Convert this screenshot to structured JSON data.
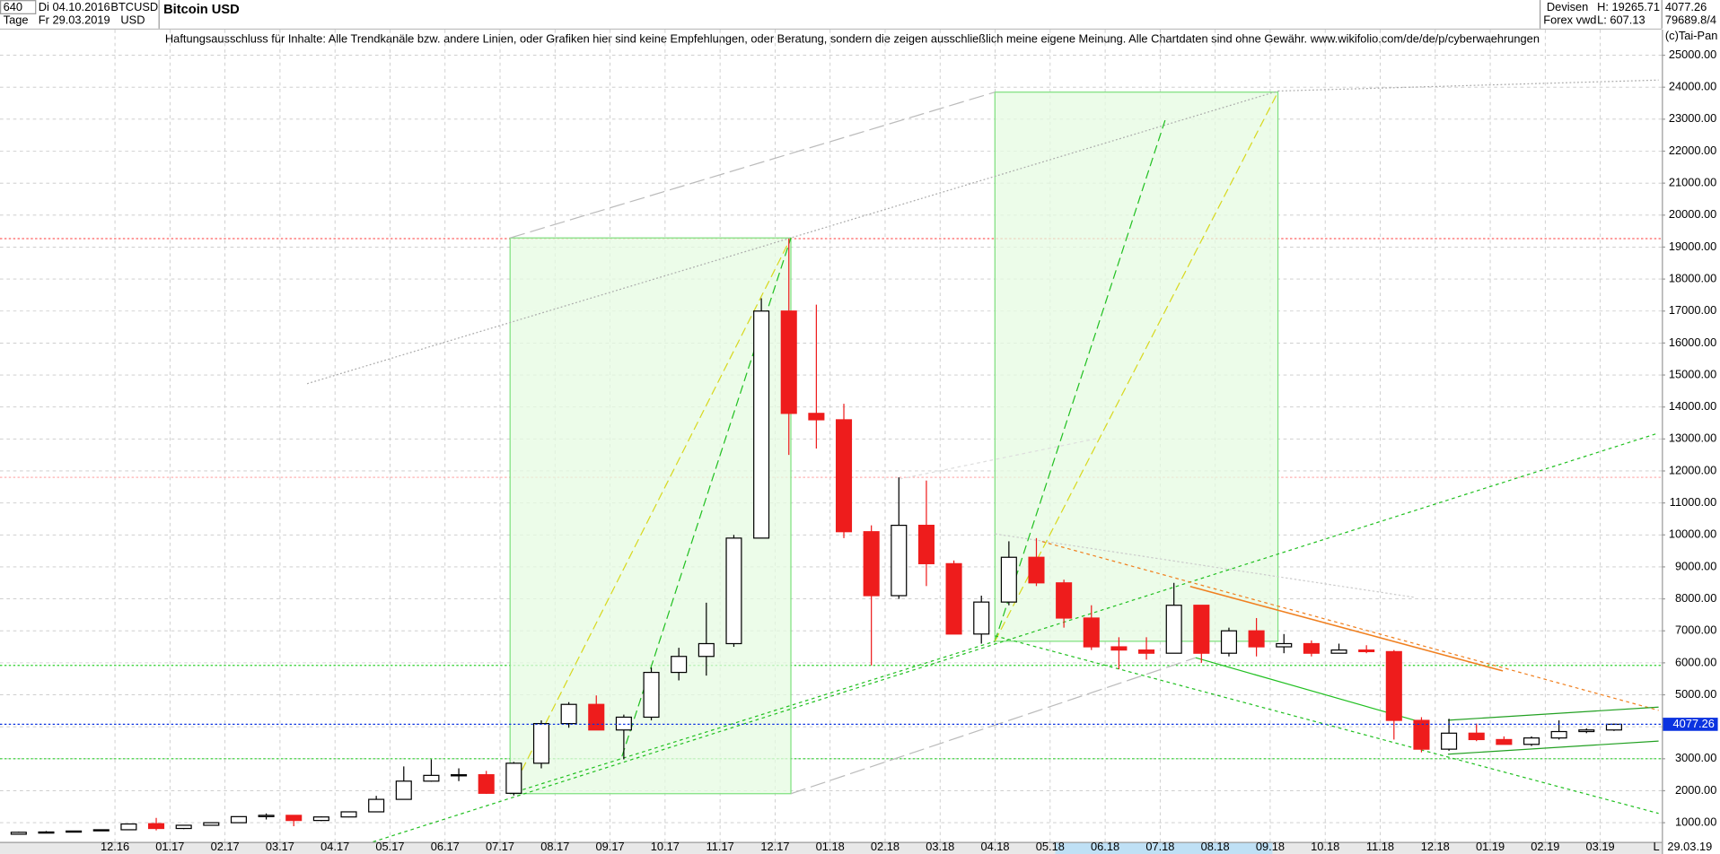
{
  "header": {
    "interval": "640",
    "period": "Tage",
    "start": "Di 04.10.2016",
    "end": "Fr 29.03.2019",
    "symbol": "BTCUSD",
    "currency": "USD",
    "name": "Bitcoin USD",
    "market": "Devisen",
    "source": "Forex vwd",
    "high": "H: 19265.71",
    "low": "L: 607.13",
    "volume": "79689.8/4",
    "copyright": "(c)Tai-Pan",
    "disclaimer": "Haftungsausschluss für Inhalte: Alle Trendkanäle bzw. andere Linien, oder Grafiken hier sind keine Empfehlungen, oder Beratung, sondern die zeigen ausschließlich meine eigene Meinung. Alle Chartdaten sind ohne Gewähr.  www.wikifolio.com/de/de/p/cyberwaehrungen",
    "date_end": "29.03.19",
    "scale_mode": "L"
  },
  "chart_data": {
    "type": "candlestick",
    "x": [
      0.75,
      1.25,
      1.75,
      2.25,
      2.75,
      3.25,
      3.75,
      4.25,
      4.75,
      5.25,
      5.75,
      6.25,
      6.75,
      7.25,
      7.75,
      8.25,
      8.75,
      9.25,
      9.75,
      10.25,
      10.75,
      11.25,
      11.75,
      12.25,
      12.75,
      13.25,
      13.75,
      14.25,
      14.75,
      15.25,
      15.75,
      16.25,
      16.75,
      17.25,
      17.75,
      18.25,
      18.75,
      19.25,
      19.75,
      20.25,
      20.75,
      21.25,
      21.75,
      22.25,
      22.75,
      23.25,
      23.75,
      24.25,
      24.75,
      25.25,
      25.75,
      26.25,
      26.75,
      27.25,
      27.75,
      28.25,
      28.75,
      29.25,
      29.75
    ],
    "open": [
      640,
      700,
      710,
      750,
      780,
      970,
      820,
      920,
      1000,
      1190,
      1230,
      1070,
      1180,
      1340,
      1730,
      2300,
      2480,
      2500,
      1920,
      2860,
      4100,
      4700,
      3900,
      4300,
      5700,
      6200,
      6600,
      9900,
      17000,
      13800,
      13600,
      10100,
      8100,
      10300,
      9100,
      6900,
      7900,
      9300,
      8500,
      7400,
      6500,
      6400,
      6300,
      7800,
      6300,
      7000,
      6500,
      6600,
      6300,
      6400,
      6350,
      4200,
      3300,
      3800,
      3600,
      3450,
      3650,
      3850,
      3900
    ],
    "high": [
      720,
      740,
      750,
      790,
      970,
      1150,
      930,
      1010,
      1200,
      1290,
      1240,
      1200,
      1350,
      1840,
      2760,
      2980,
      2700,
      2620,
      2900,
      4200,
      4770,
      4980,
      4380,
      5850,
      6470,
      7880,
      10000,
      17400,
      19265.71,
      17200,
      14100,
      10300,
      11800,
      11700,
      9200,
      8100,
      9800,
      9900,
      8600,
      7800,
      6800,
      6800,
      8500,
      7800,
      7100,
      7400,
      6900,
      6700,
      6600,
      6550,
      6400,
      4300,
      4250,
      4100,
      3700,
      3700,
      4200,
      3950,
      4100
    ],
    "low": [
      630,
      690,
      700,
      740,
      780,
      760,
      800,
      910,
      990,
      1100,
      890,
      1050,
      1170,
      1330,
      1730,
      2280,
      2300,
      1900,
      1850,
      2700,
      3970,
      3900,
      2980,
      4200,
      5450,
      5600,
      6500,
      9900,
      12500,
      12700,
      9900,
      5920,
      8000,
      8400,
      6900,
      6600,
      7800,
      8400,
      7100,
      6400,
      5800,
      6100,
      6300,
      6000,
      6200,
      6200,
      6300,
      6200,
      6300,
      6300,
      3600,
      3200,
      3250,
      3550,
      3450,
      3400,
      3600,
      3800,
      3870
    ],
    "close": [
      700,
      710,
      740,
      780,
      960,
      820,
      920,
      1000,
      1190,
      1230,
      1070,
      1180,
      1340,
      1730,
      2300,
      2480,
      2500,
      1920,
      2860,
      4100,
      4700,
      3900,
      4300,
      5700,
      6200,
      6600,
      9900,
      17000,
      13800,
      13600,
      10100,
      8100,
      10300,
      9100,
      6900,
      7900,
      9300,
      8500,
      7400,
      6500,
      6400,
      6300,
      7800,
      6300,
      7000,
      6500,
      6600,
      6300,
      6400,
      6350,
      4200,
      3300,
      3800,
      3600,
      3450,
      3650,
      3850,
      3900,
      4077.26
    ],
    "up_color": "#000000",
    "down_color": "#ee1c1c",
    "last_price": 4077.26,
    "last_color": "#0b33e0",
    "hlines": [
      {
        "value": 19265.71,
        "color": "#ff6060"
      },
      {
        "value": 11800,
        "color": "#ffb0b0"
      },
      {
        "value": 5920,
        "color": "#2fd02f"
      },
      {
        "value": 3000,
        "color": "#2fd02f"
      }
    ],
    "xlim": [
      0.41,
      30.62
    ],
    "ylim": [
      400,
      25800
    ],
    "xticks": [
      {
        "value": 2.5,
        "label": "12.16"
      },
      {
        "value": 3.5,
        "label": "01.17"
      },
      {
        "value": 4.5,
        "label": "02.17"
      },
      {
        "value": 5.5,
        "label": "03.17"
      },
      {
        "value": 6.5,
        "label": "04.17"
      },
      {
        "value": 7.5,
        "label": "05.17"
      },
      {
        "value": 8.5,
        "label": "06.17"
      },
      {
        "value": 9.5,
        "label": "07.17"
      },
      {
        "value": 10.5,
        "label": "08.17"
      },
      {
        "value": 11.5,
        "label": "09.17"
      },
      {
        "value": 12.5,
        "label": "10.17"
      },
      {
        "value": 13.5,
        "label": "11.17"
      },
      {
        "value": 14.5,
        "label": "12.17"
      },
      {
        "value": 15.5,
        "label": "01.18"
      },
      {
        "value": 16.5,
        "label": "02.18"
      },
      {
        "value": 17.5,
        "label": "03.18"
      },
      {
        "value": 18.5,
        "label": "04.18"
      },
      {
        "value": 19.5,
        "label": "05.18"
      },
      {
        "value": 20.5,
        "label": "06.18"
      },
      {
        "value": 21.5,
        "label": "07.18"
      },
      {
        "value": 22.5,
        "label": "08.18"
      },
      {
        "value": 23.5,
        "label": "09.18"
      },
      {
        "value": 24.5,
        "label": "10.18"
      },
      {
        "value": 25.5,
        "label": "11.18"
      },
      {
        "value": 26.5,
        "label": "12.18"
      },
      {
        "value": 27.5,
        "label": "01.19"
      },
      {
        "value": 28.5,
        "label": "02.19"
      },
      {
        "value": 29.5,
        "label": "03.19"
      }
    ],
    "yticks": [
      {
        "value": 1000,
        "label": "1000.00"
      },
      {
        "value": 2000,
        "label": "2000.00"
      },
      {
        "value": 3000,
        "label": "3000.00"
      },
      {
        "value": 4000,
        "label": "4000.00"
      },
      {
        "value": 5000,
        "label": "5000.00"
      },
      {
        "value": 6000,
        "label": "6000.00"
      },
      {
        "value": 7000,
        "label": "7000.00"
      },
      {
        "value": 8000,
        "label": "8000.00"
      },
      {
        "value": 9000,
        "label": "9000.00"
      },
      {
        "value": 10000,
        "label": "10000.00"
      },
      {
        "value": 11000,
        "label": "11000.00"
      },
      {
        "value": 12000,
        "label": "12000.00"
      },
      {
        "value": 13000,
        "label": "13000.00"
      },
      {
        "value": 14000,
        "label": "14000.00"
      },
      {
        "value": 15000,
        "label": "15000.00"
      },
      {
        "value": 16000,
        "label": "16000.00"
      },
      {
        "value": 17000,
        "label": "17000.00"
      },
      {
        "value": 18000,
        "label": "18000.00"
      },
      {
        "value": 19000,
        "label": "19000.00"
      },
      {
        "value": 20000,
        "label": "20000.00"
      },
      {
        "value": 21000,
        "label": "21000.00"
      },
      {
        "value": 22000,
        "label": "22000.00"
      },
      {
        "value": 23000,
        "label": "23000.00"
      },
      {
        "value": 24000,
        "label": "24000.00"
      },
      {
        "value": 25000,
        "label": "25000.00"
      }
    ],
    "grid": true
  }
}
